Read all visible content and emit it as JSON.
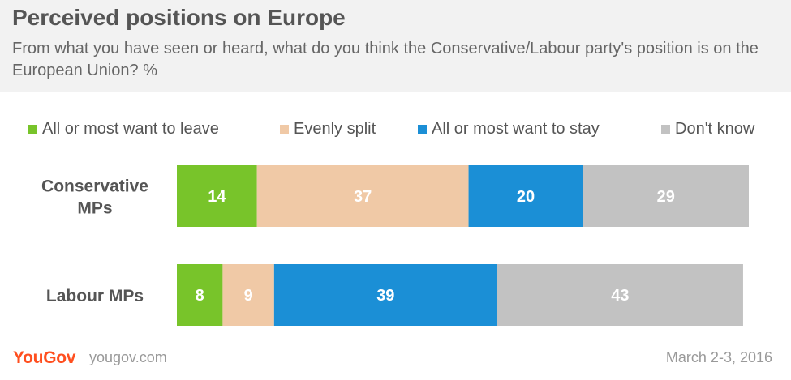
{
  "title": "Perceived positions on Europe",
  "subtitle": "From what you have seen or heard, what do you think the Conservative/Labour party's position is on the European Union? %",
  "footer": {
    "logo": "YouGov",
    "url": "yougov.com",
    "date": "March 2-3, 2016"
  },
  "chart_data": {
    "type": "bar",
    "orientation": "horizontal",
    "stacked": true,
    "categories": [
      "Conservative MPs",
      "Labour MPs"
    ],
    "series": [
      {
        "name": "All or most want to leave",
        "color": "#78c42a",
        "values": [
          14,
          8
        ]
      },
      {
        "name": "Evenly split",
        "color": "#f0c9a6",
        "values": [
          37,
          9
        ]
      },
      {
        "name": "All or most want to stay",
        "color": "#1b8fd6",
        "values": [
          20,
          39
        ]
      },
      {
        "name": "Don't know",
        "color": "#c2c2c2",
        "values": [
          29,
          43
        ]
      }
    ],
    "xlim": [
      0,
      100
    ],
    "legend_position": "top",
    "grid": false,
    "data_labels": true
  }
}
